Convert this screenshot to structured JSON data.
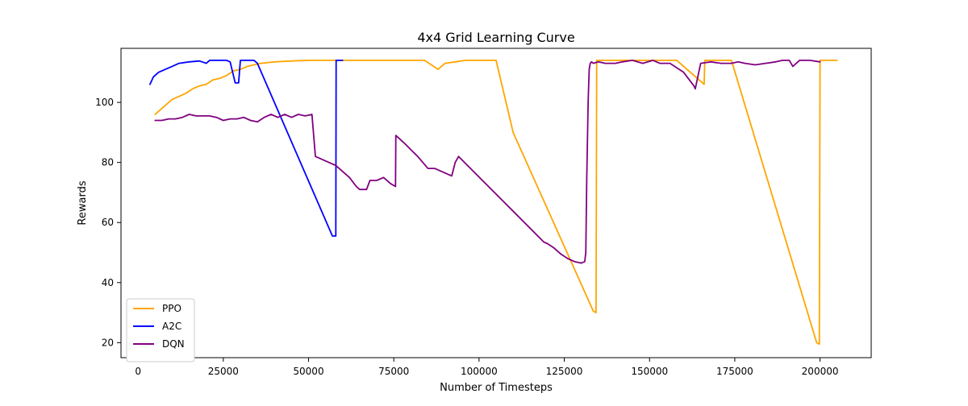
{
  "chart_data": {
    "type": "line",
    "title": "4x4 Grid Learning Curve",
    "xlabel": "Number of Timesteps",
    "ylabel": "Rewards",
    "xlim": [
      -5000,
      215000
    ],
    "ylim": [
      15,
      118
    ],
    "xticks": [
      0,
      25000,
      50000,
      75000,
      100000,
      125000,
      150000,
      175000,
      200000
    ],
    "xtick_labels": [
      "0",
      "25000",
      "50000",
      "75000",
      "100000",
      "125000",
      "150000",
      "175000",
      "200000"
    ],
    "yticks": [
      20,
      40,
      60,
      80,
      100
    ],
    "ytick_labels": [
      "20",
      "40",
      "60",
      "80",
      "100"
    ],
    "grid": false,
    "legend_position": "lower-left",
    "series": [
      {
        "name": "PPO",
        "color": "#ffa500",
        "x": [
          5000,
          6000,
          7000,
          8000,
          9000,
          10000,
          12000,
          14000,
          16000,
          18000,
          20000,
          22000,
          24000,
          26000,
          28000,
          30000,
          32000,
          34000,
          36000,
          40000,
          45000,
          50000,
          55000,
          60000,
          65000,
          70000,
          75000,
          80000,
          84000,
          86000,
          88000,
          90000,
          93000,
          96000,
          100000,
          105000,
          110000,
          133500,
          134300,
          134500,
          140000,
          145000,
          150000,
          158000,
          166000,
          166200,
          170000,
          174000,
          199000,
          199800,
          200000,
          205000
        ],
        "y": [
          96,
          97,
          98,
          99,
          100,
          101,
          102,
          103,
          104.5,
          105.5,
          106,
          107.5,
          108,
          109,
          110.5,
          111,
          112,
          112.5,
          113,
          113.5,
          113.8,
          114,
          114,
          114,
          114,
          114,
          114,
          114,
          114,
          112.5,
          111,
          113,
          113.5,
          114,
          114,
          114,
          90,
          30.5,
          30,
          114,
          114,
          114,
          114,
          114,
          106,
          114,
          114,
          114,
          20,
          19.5,
          114,
          114
        ]
      },
      {
        "name": "A2C",
        "color": "#0000ff",
        "x": [
          3500,
          4500,
          6000,
          8000,
          10000,
          12000,
          15000,
          18000,
          20000,
          21000,
          22000,
          24000,
          26000,
          27000,
          28500,
          29500,
          30000,
          32000,
          34000,
          35000,
          57000,
          58000,
          58100,
          60000
        ],
        "y": [
          106,
          108.5,
          110,
          111,
          112,
          113,
          113.5,
          113.8,
          113,
          114,
          114,
          114,
          114,
          113.5,
          106.5,
          106.5,
          114,
          114,
          114,
          113,
          55.5,
          55.5,
          114,
          114
        ]
      },
      {
        "name": "DQN",
        "color": "#800080",
        "x": [
          5000,
          7000,
          9000,
          11000,
          13000,
          15000,
          17000,
          19000,
          21000,
          23000,
          25000,
          27000,
          29000,
          31000,
          33000,
          35000,
          37000,
          39000,
          41000,
          43000,
          45000,
          47000,
          49000,
          51000,
          52000,
          54000,
          56000,
          58000,
          60000,
          62000,
          64000,
          65000,
          67000,
          68000,
          70000,
          72000,
          74000,
          75500,
          75600,
          78000,
          82000,
          85000,
          87000,
          90000,
          92000,
          93000,
          94000,
          119000,
          120000,
          122000,
          124000,
          126000,
          128000,
          130000,
          131000,
          131300,
          131600,
          132000,
          132300,
          132600,
          133000,
          133500,
          135000,
          137000,
          140000,
          142000,
          145000,
          148000,
          151000,
          153000,
          156000,
          160000,
          163000,
          163400,
          165000,
          168000,
          171000,
          174000,
          176000,
          178000,
          181000,
          184000,
          187000,
          189000,
          191000,
          192000,
          194000,
          197000,
          200000
        ],
        "y": [
          94,
          94,
          94.5,
          94.5,
          95,
          96,
          95.5,
          95.5,
          95.5,
          95,
          94,
          94.5,
          94.5,
          95,
          94,
          93.5,
          95,
          96,
          95,
          96,
          95,
          96,
          95.5,
          96,
          82,
          81,
          80,
          79,
          77,
          75,
          72,
          71,
          71,
          74,
          74,
          75,
          73,
          72,
          89,
          86.5,
          82,
          78,
          78,
          76.5,
          75.5,
          80,
          82,
          53.5,
          53,
          51.5,
          49.5,
          48,
          47,
          46.5,
          47,
          50,
          75,
          100,
          111,
          113,
          113.5,
          113,
          113.5,
          113,
          113,
          113.5,
          114,
          113,
          114,
          113,
          113,
          110,
          105.5,
          104.5,
          113,
          113.5,
          113,
          113,
          113.5,
          113,
          112.5,
          113,
          113.5,
          114,
          114,
          112,
          114,
          114,
          113.5
        ]
      }
    ]
  }
}
